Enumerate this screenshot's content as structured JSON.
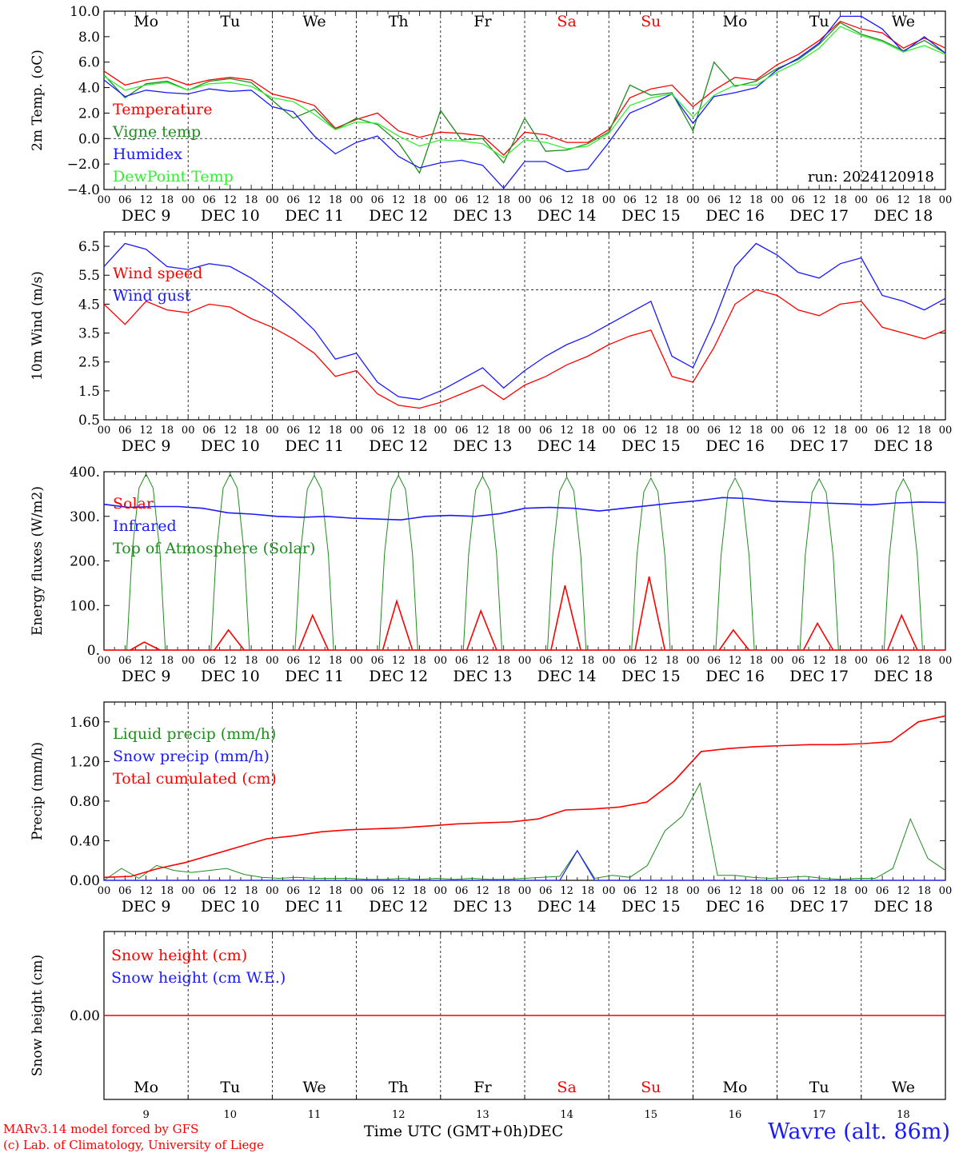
{
  "run_label": "run: 2024120918",
  "station": "Wavre (alt. 86m)",
  "credit_lines": [
    "MARv3.14 model forced by GFS",
    "(c) Lab. of Climatology, University of Liege"
  ],
  "time_axis_label": "Time UTC (GMT+0h)",
  "month_label": "DEC",
  "hour_ticks": [
    "00",
    "06",
    "12",
    "18"
  ],
  "last_hour_tick": "00",
  "weekdays": [
    "Mo",
    "Tu",
    "We",
    "Th",
    "Fr",
    "Sa",
    "Su",
    "Mo",
    "Tu",
    "We"
  ],
  "weekend_flags": [
    false,
    false,
    false,
    false,
    false,
    true,
    true,
    false,
    false,
    false
  ],
  "date_labels": [
    "DEC  9",
    "DEC 10",
    "DEC 11",
    "DEC 12",
    "DEC 13",
    "DEC 14",
    "DEC 15",
    "DEC 16",
    "DEC 17",
    "DEC 18"
  ],
  "day_numbers": [
    "9",
    "10",
    "11",
    "12",
    "13",
    "14",
    "15",
    "16",
    "17",
    "18"
  ],
  "colors": {
    "red": "#ff0000",
    "green": "#1f8c1f",
    "blue": "#1a1aff",
    "lightgreen": "#33ee33",
    "weekend": "#ff0000"
  },
  "chart_data": [
    {
      "type": "line",
      "ylabel": "2m Temp. (oC)",
      "ylim": [
        -4,
        10
      ],
      "yticks": [
        "10.0",
        "8.0",
        "6.0",
        "4.0",
        "2.0",
        "0.0",
        "−2.0",
        "−4.0"
      ],
      "ref_line": 0,
      "x_hours": [
        0,
        6,
        12,
        18,
        24,
        30,
        36,
        42,
        48,
        54,
        60,
        66,
        72,
        78,
        84,
        90,
        96,
        102,
        108,
        114,
        120,
        126,
        132,
        138,
        144,
        150,
        156,
        162,
        168,
        174,
        180,
        186,
        192,
        198,
        204,
        210,
        216,
        222,
        228,
        234,
        240
      ],
      "series": [
        {
          "name": "Temperature",
          "color": "red",
          "values": [
            5.3,
            4.2,
            4.6,
            4.8,
            4.2,
            4.6,
            4.8,
            4.6,
            3.5,
            3.1,
            2.6,
            0.8,
            1.5,
            2.0,
            0.6,
            0.1,
            0.5,
            0.4,
            0.2,
            -1.3,
            0.5,
            0.3,
            -0.3,
            -0.3,
            0.7,
            3.2,
            3.9,
            4.2,
            2.5,
            3.8,
            4.8,
            4.6,
            5.8,
            6.6,
            7.7,
            9.2,
            8.6,
            8.3,
            7.1,
            7.9,
            7.1
          ]
        },
        {
          "name": "Vigne temp",
          "color": "green",
          "values": [
            5.0,
            3.2,
            4.3,
            4.5,
            3.8,
            4.5,
            4.7,
            4.4,
            3.0,
            1.6,
            2.3,
            0.7,
            1.6,
            1.1,
            -0.3,
            -2.7,
            2.2,
            -0.1,
            0.0,
            -1.9,
            1.6,
            -1.0,
            -0.9,
            -0.4,
            0.5,
            4.2,
            3.4,
            3.6,
            0.6,
            6.0,
            4.1,
            4.5,
            5.5,
            6.2,
            7.4,
            9.1,
            8.2,
            7.7,
            6.9,
            7.7,
            6.7
          ]
        },
        {
          "name": "Humidex",
          "color": "blue",
          "values": [
            4.6,
            3.3,
            3.8,
            3.6,
            3.5,
            3.9,
            3.7,
            3.8,
            2.5,
            2.1,
            0.2,
            -1.2,
            -0.3,
            0.2,
            -1.4,
            -2.3,
            -1.9,
            -1.7,
            -2.1,
            -3.9,
            -1.8,
            -1.8,
            -2.6,
            -2.4,
            -0.3,
            2.0,
            2.7,
            3.5,
            1.2,
            3.3,
            3.6,
            4.0,
            5.4,
            6.3,
            7.5,
            9.6,
            9.6,
            8.6,
            6.8,
            8.0,
            6.7
          ]
        },
        {
          "name": "DewPoint Temp",
          "color": "lightgreen",
          "values": [
            4.9,
            3.8,
            4.2,
            4.4,
            3.8,
            4.3,
            4.4,
            4.1,
            3.2,
            2.9,
            1.9,
            0.7,
            1.3,
            1.2,
            0.2,
            -0.6,
            -0.1,
            -0.2,
            -0.4,
            -1.5,
            -0.1,
            -0.3,
            -0.8,
            -0.6,
            0.4,
            2.6,
            3.2,
            3.5,
            1.7,
            3.4,
            4.2,
            4.2,
            5.2,
            6.0,
            7.1,
            8.8,
            8.1,
            7.6,
            6.8,
            7.3,
            6.6
          ]
        }
      ]
    },
    {
      "type": "line",
      "ylabel": "10m Wind (m/s)",
      "ylim": [
        0.5,
        7.0
      ],
      "yticks": [
        "6.5",
        "5.5",
        "4.5",
        "3.5",
        "2.5",
        "1.5",
        "0.5"
      ],
      "ref_line": 5.0,
      "x_hours": [
        0,
        6,
        12,
        18,
        24,
        30,
        36,
        42,
        48,
        54,
        60,
        66,
        72,
        78,
        84,
        90,
        96,
        102,
        108,
        114,
        120,
        126,
        132,
        138,
        144,
        150,
        156,
        162,
        168,
        174,
        180,
        186,
        192,
        198,
        204,
        210,
        216,
        222,
        228,
        234,
        240
      ],
      "series": [
        {
          "name": "Wind speed",
          "color": "red",
          "values": [
            4.5,
            3.8,
            4.6,
            4.3,
            4.2,
            4.5,
            4.4,
            4.0,
            3.7,
            3.3,
            2.8,
            2.0,
            2.2,
            1.4,
            1.0,
            0.9,
            1.1,
            1.4,
            1.7,
            1.2,
            1.7,
            2.0,
            2.4,
            2.7,
            3.1,
            3.4,
            3.6,
            2.0,
            1.8,
            3.0,
            4.5,
            5.0,
            4.8,
            4.3,
            4.1,
            4.5,
            4.6,
            3.7,
            3.5,
            3.3,
            3.6
          ]
        },
        {
          "name": "Wind gust",
          "color": "blue",
          "values": [
            5.8,
            6.6,
            6.4,
            5.8,
            5.7,
            5.9,
            5.8,
            5.4,
            4.9,
            4.3,
            3.6,
            2.6,
            2.8,
            1.8,
            1.3,
            1.2,
            1.5,
            1.9,
            2.3,
            1.6,
            2.2,
            2.7,
            3.1,
            3.4,
            3.8,
            4.2,
            4.6,
            2.7,
            2.3,
            3.9,
            5.8,
            6.6,
            6.2,
            5.6,
            5.4,
            5.9,
            6.1,
            4.8,
            4.6,
            4.3,
            4.7
          ]
        }
      ]
    },
    {
      "type": "line",
      "ylabel": "Energy fluxes (W/m2)",
      "ylim": [
        0,
        400
      ],
      "yticks": [
        "400.",
        "300.",
        "200.",
        "100.",
        "0."
      ],
      "series": [
        {
          "name": "Solar",
          "color": "red",
          "peaks": [
            18,
            45,
            78,
            110,
            88,
            145,
            165,
            45,
            60,
            78
          ]
        },
        {
          "name": "Infrared",
          "color": "blue",
          "values": [
            327,
            320,
            322,
            322,
            318,
            308,
            305,
            300,
            298,
            300,
            296,
            294,
            292,
            300,
            302,
            300,
            306,
            318,
            320,
            318,
            312,
            318,
            324,
            330,
            335,
            342,
            340,
            334,
            332,
            330,
            328,
            326,
            330,
            332,
            331
          ]
        },
        {
          "name": "Top of Atmosphere (Solar)",
          "color": "green",
          "peaks": [
            395,
            395,
            392,
            392,
            390,
            388,
            386,
            386,
            384,
            384
          ]
        }
      ]
    },
    {
      "type": "line",
      "ylabel": "Precip (mm/h)",
      "ylim": [
        0,
        1.8
      ],
      "yticks": [
        "1.60",
        "1.20",
        "0.80",
        "0.40",
        "0.00"
      ],
      "series": [
        {
          "name": "Liquid precip (mm/h)",
          "color": "green",
          "values": [
            0.0,
            0.12,
            0.02,
            0.15,
            0.1,
            0.08,
            0.1,
            0.12,
            0.06,
            0.03,
            0.02,
            0.03,
            0.02,
            0.02,
            0.02,
            0.01,
            0.01,
            0.02,
            0.01,
            0.02,
            0.01,
            0.02,
            0.01,
            0.01,
            0.02,
            0.03,
            0.04,
            0.3,
            0.02,
            0.05,
            0.03,
            0.15,
            0.5,
            0.65,
            0.98,
            0.05,
            0.05,
            0.03,
            0.02,
            0.03,
            0.04,
            0.02,
            0.01,
            0.02,
            0.02,
            0.12,
            0.62,
            0.22,
            0.1
          ]
        },
        {
          "name": "Snow precip (mm/h)",
          "color": "blue",
          "values": [
            0.0,
            0.0,
            0.0,
            0.0,
            0.0,
            0.0,
            0.0,
            0.0,
            0.0,
            0.0,
            0.0,
            0.0,
            0.0,
            0.0,
            0.0,
            0.0,
            0.0,
            0.0,
            0.0,
            0.0,
            0.0,
            0.0,
            0.0,
            0.0,
            0.0,
            0.0,
            0.0,
            0.3,
            0.0,
            0.0,
            0.0,
            0.0,
            0.0,
            0.0,
            0.0,
            0.0,
            0.0,
            0.0,
            0.0,
            0.0,
            0.0,
            0.0,
            0.0,
            0.0,
            0.0,
            0.0,
            0.0,
            0.0,
            0.0
          ]
        },
        {
          "name": "Total cumulated (cm)",
          "color": "red",
          "values": [
            0.03,
            0.04,
            0.12,
            0.18,
            0.26,
            0.34,
            0.42,
            0.45,
            0.49,
            0.51,
            0.52,
            0.53,
            0.55,
            0.57,
            0.58,
            0.59,
            0.62,
            0.71,
            0.72,
            0.74,
            0.79,
            1.0,
            1.3,
            1.33,
            1.35,
            1.36,
            1.37,
            1.37,
            1.38,
            1.4,
            1.6,
            1.66
          ]
        }
      ]
    },
    {
      "type": "line",
      "ylabel": "Snow height (cm)",
      "yticks": [
        "0.00"
      ],
      "series": [
        {
          "name": "Snow height (cm)",
          "color": "red",
          "values": [
            0,
            0
          ]
        },
        {
          "name": "Snow height (cm W.E.)",
          "color": "blue",
          "values": [
            0,
            0
          ]
        }
      ]
    }
  ]
}
